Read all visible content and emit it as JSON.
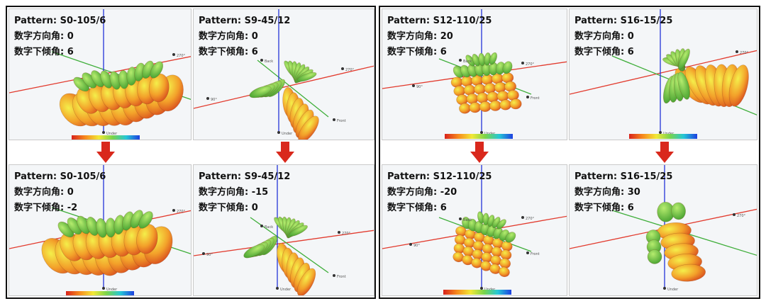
{
  "panels": [
    {
      "pattern": "Pattern: S0-105/6",
      "azimuth": "数字方向角: 0",
      "tilt": "数字下倾角: 6"
    },
    {
      "pattern": "Pattern: S9-45/12",
      "azimuth": "数字方向角: 0",
      "tilt": "数字下倾角: 6"
    },
    {
      "pattern": "Pattern: S12-110/25",
      "azimuth": "数字方向角: 20",
      "tilt": "数字下倾角: 6"
    },
    {
      "pattern": "Pattern: S16-15/25",
      "azimuth": "数字方向角: 0",
      "tilt": "数字下倾角: 6"
    },
    {
      "pattern": "Pattern: S0-105/6",
      "azimuth": "数字方向角: 0",
      "tilt": "数字下倾角: -2"
    },
    {
      "pattern": "Pattern: S9-45/12",
      "azimuth": "数字方向角: -15",
      "tilt": "数字下倾角: 0"
    },
    {
      "pattern": "Pattern: S12-110/25",
      "azimuth": "数字方向角: -20",
      "tilt": "数字下倾角: 6"
    },
    {
      "pattern": "Pattern: S16-15/25",
      "azimuth": "数字方向角: 30",
      "tilt": "数字下倾角: 6"
    }
  ],
  "axis_labels": {
    "deg270": "270°",
    "deg90": "90°",
    "back": "Back",
    "front": "Front",
    "under": "Under",
    "up": "Up"
  },
  "colors": {
    "axis_red": "#e23b2e",
    "axis_green": "#3fae3a",
    "axis_blue": "#2433d8",
    "arrow_red": "#d9281c"
  }
}
